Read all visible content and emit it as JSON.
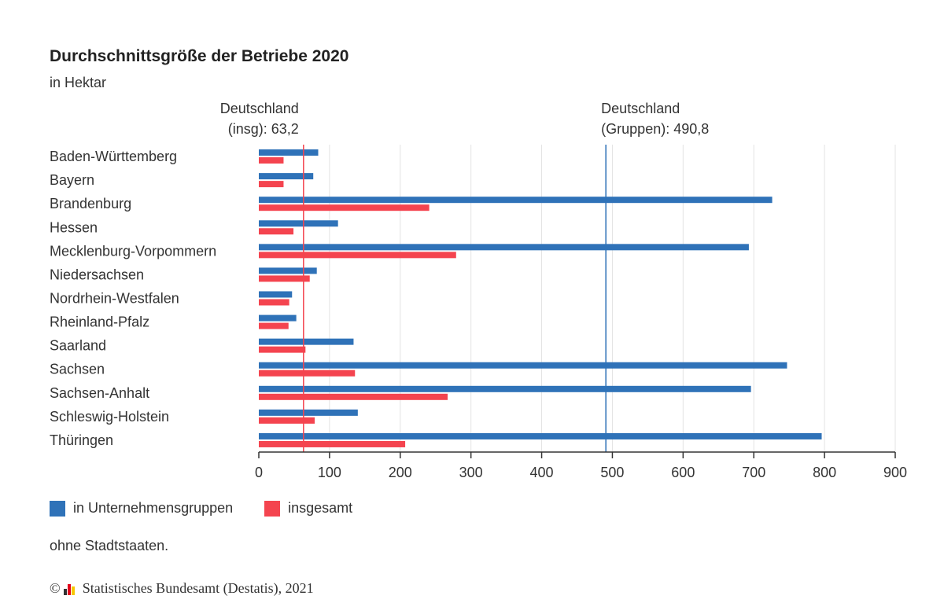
{
  "title": "Durchschnittsgröße der Betriebe 2020",
  "subtitle": "in Hektar",
  "legend": {
    "series1": "in Unternehmensgruppen",
    "series2": "insgesamt"
  },
  "note": "ohne Stadtstaaten.",
  "footer": {
    "copyright_symbol": "©",
    "text": "Statistisches Bundesamt (Destatis), 2021"
  },
  "colors": {
    "series1": "#2f72b8",
    "series2": "#f4444f",
    "grid": "#e3e3e3",
    "axis": "#333333"
  },
  "chart_data": {
    "type": "bar",
    "orientation": "horizontal",
    "categories": [
      "Baden-Württemberg",
      "Bayern",
      "Brandenburg",
      "Hessen",
      "Mecklenburg-Vorpommern",
      "Niedersachsen",
      "Nordrhein-Westfalen",
      "Rheinland-Pfalz",
      "Saarland",
      "Sachsen",
      "Sachsen-Anhalt",
      "Schleswig-Holstein",
      "Thüringen"
    ],
    "series": [
      {
        "name": "in Unternehmensgruppen",
        "color": "#2f72b8",
        "values": [
          84,
          77,
          726,
          112,
          693,
          82,
          47,
          53,
          134,
          747,
          696,
          140,
          796
        ]
      },
      {
        "name": "insgesamt",
        "color": "#f4444f",
        "values": [
          35,
          35,
          241,
          49,
          279,
          72,
          43,
          42,
          66,
          136,
          267,
          79,
          207
        ]
      }
    ],
    "xlim": [
      0,
      900
    ],
    "xticks": [
      0,
      100,
      200,
      300,
      400,
      500,
      600,
      700,
      800,
      900
    ],
    "grid": true,
    "legend_position": "bottom-left",
    "reference_lines": [
      {
        "value": 63.2,
        "color": "#f4444f",
        "label_line1": "Deutschland",
        "label_line2": "(insg): 63,2",
        "align": "right"
      },
      {
        "value": 490.8,
        "color": "#2f72b8",
        "label_line1": "Deutschland",
        "label_line2": "(Gruppen): 490,8",
        "align": "left"
      }
    ]
  }
}
